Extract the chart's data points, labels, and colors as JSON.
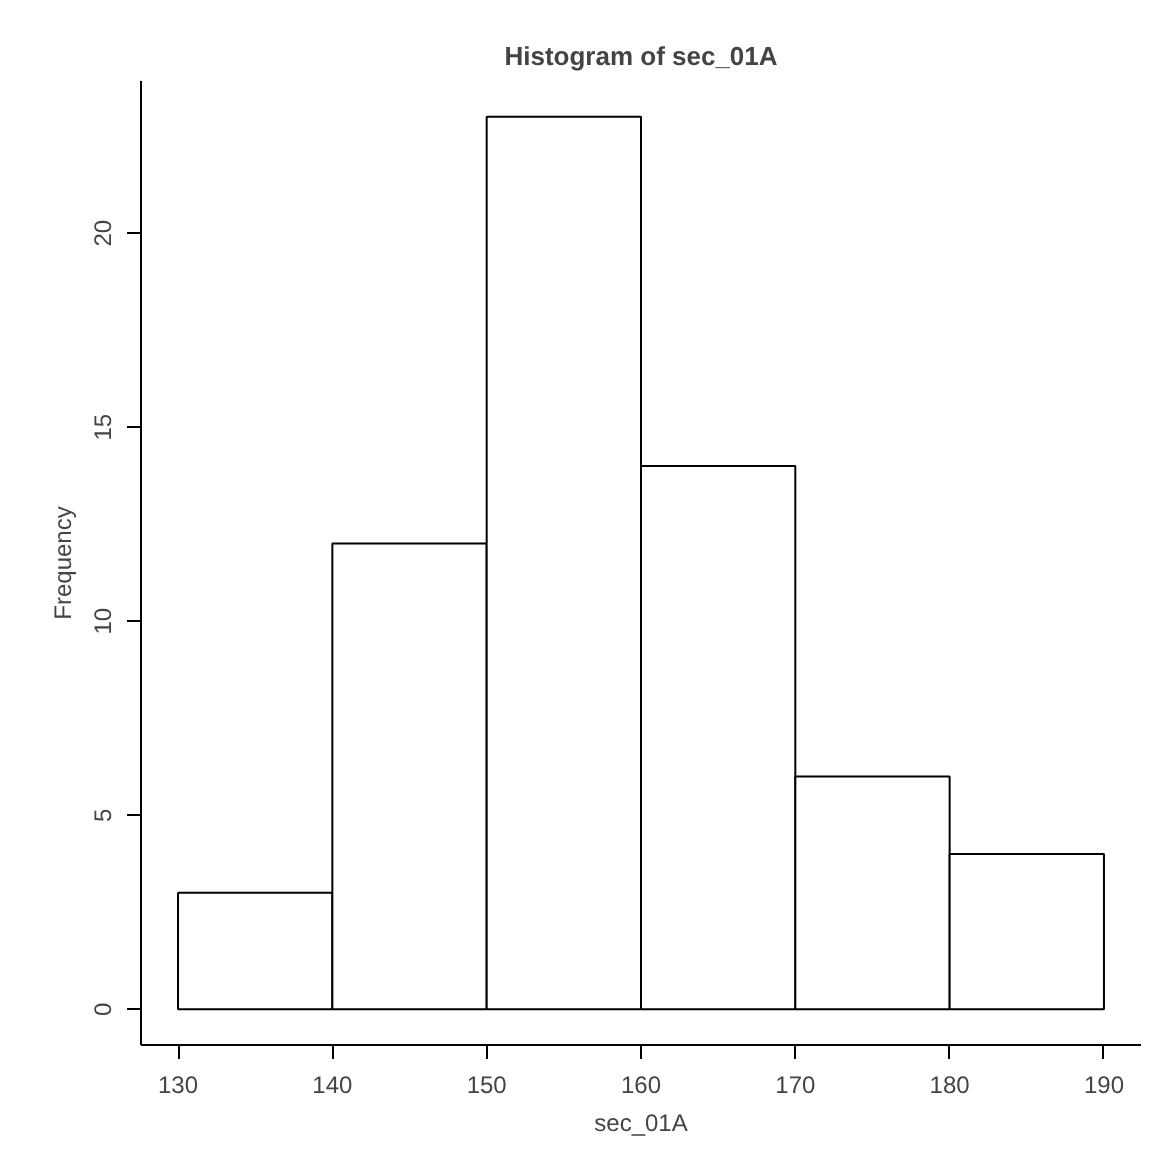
{
  "chart_data": {
    "type": "histogram",
    "title": "Histogram of sec_01A",
    "xlabel": "sec_01A",
    "ylabel": "Frequency",
    "bins": [
      130,
      140,
      150,
      160,
      170,
      180,
      190
    ],
    "values": [
      3,
      12,
      23,
      14,
      6,
      4
    ],
    "color": "#ffffff",
    "xlim": [
      127.6,
      192.4
    ],
    "ylim": [
      -0.92,
      23.92
    ],
    "xticks": [
      130,
      140,
      150,
      160,
      170,
      180,
      190
    ],
    "yticks": [
      0,
      5,
      10,
      15,
      20
    ],
    "grid": false
  }
}
